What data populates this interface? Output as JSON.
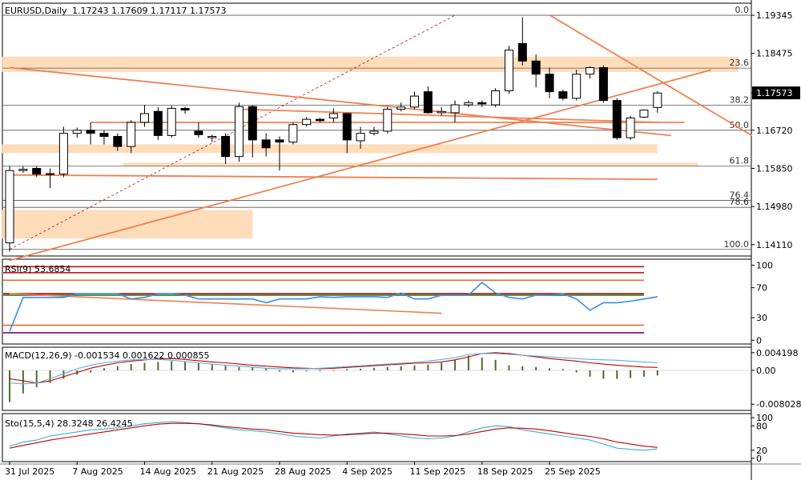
{
  "chart_data": {
    "type": "candlestick",
    "symbol_header": "EURUSD,Daily",
    "ohlc_header": "1.17243 1.17609 1.17117 1.17573",
    "current_price_label": "1.17573",
    "price_axis_labels": [
      "1.19345",
      "1.18475",
      "1.17573",
      "1.16720",
      "1.15850",
      "1.14980",
      "1.14110"
    ],
    "price_axis_values": [
      1.19345,
      1.18475,
      1.17573,
      1.1672,
      1.1585,
      1.1498,
      1.1411
    ],
    "ylim": [
      1.1385,
      1.1962
    ],
    "x_tick_labels": [
      "31 Jul 2025",
      "7 Aug 2025",
      "14 Aug 2025",
      "21 Aug 2025",
      "28 Aug 2025",
      "4 Sep 2025",
      "11 Sep 2025",
      "18 Sep 2025",
      "25 Sep 2025"
    ],
    "x_tick_bar_index": [
      0,
      5,
      10,
      15,
      20,
      25,
      30,
      35,
      40
    ],
    "candles": [
      {
        "o": 1.1415,
        "h": 1.159,
        "l": 1.1395,
        "c": 1.158
      },
      {
        "o": 1.158,
        "h": 1.159,
        "l": 1.1575,
        "c": 1.1583
      },
      {
        "o": 1.1585,
        "h": 1.159,
        "l": 1.1565,
        "c": 1.1572
      },
      {
        "o": 1.1573,
        "h": 1.1585,
        "l": 1.154,
        "c": 1.1572
      },
      {
        "o": 1.1572,
        "h": 1.168,
        "l": 1.1565,
        "c": 1.1665
      },
      {
        "o": 1.1665,
        "h": 1.1678,
        "l": 1.1655,
        "c": 1.1672
      },
      {
        "o": 1.1672,
        "h": 1.169,
        "l": 1.164,
        "c": 1.1665
      },
      {
        "o": 1.1665,
        "h": 1.1672,
        "l": 1.164,
        "c": 1.1658
      },
      {
        "o": 1.1658,
        "h": 1.1665,
        "l": 1.1625,
        "c": 1.1635
      },
      {
        "o": 1.1635,
        "h": 1.1695,
        "l": 1.162,
        "c": 1.169
      },
      {
        "o": 1.169,
        "h": 1.173,
        "l": 1.168,
        "c": 1.171
      },
      {
        "o": 1.1715,
        "h": 1.1725,
        "l": 1.165,
        "c": 1.166
      },
      {
        "o": 1.166,
        "h": 1.1728,
        "l": 1.1655,
        "c": 1.1722
      },
      {
        "o": 1.1722,
        "h": 1.1725,
        "l": 1.171,
        "c": 1.1718
      },
      {
        "o": 1.167,
        "h": 1.169,
        "l": 1.1655,
        "c": 1.1662
      },
      {
        "o": 1.1655,
        "h": 1.1662,
        "l": 1.1645,
        "c": 1.1658
      },
      {
        "o": 1.1658,
        "h": 1.1665,
        "l": 1.1595,
        "c": 1.1612
      },
      {
        "o": 1.1612,
        "h": 1.1735,
        "l": 1.16,
        "c": 1.1726
      },
      {
        "o": 1.1726,
        "h": 1.173,
        "l": 1.161,
        "c": 1.165
      },
      {
        "o": 1.165,
        "h": 1.1665,
        "l": 1.1612,
        "c": 1.1632
      },
      {
        "o": 1.165,
        "h": 1.1658,
        "l": 1.158,
        "c": 1.1645
      },
      {
        "o": 1.1645,
        "h": 1.169,
        "l": 1.164,
        "c": 1.1685
      },
      {
        "o": 1.1685,
        "h": 1.1702,
        "l": 1.168,
        "c": 1.1697
      },
      {
        "o": 1.1697,
        "h": 1.17,
        "l": 1.169,
        "c": 1.1694
      },
      {
        "o": 1.17,
        "h": 1.1722,
        "l": 1.169,
        "c": 1.171
      },
      {
        "o": 1.171,
        "h": 1.1712,
        "l": 1.162,
        "c": 1.165
      },
      {
        "o": 1.1648,
        "h": 1.168,
        "l": 1.163,
        "c": 1.1665
      },
      {
        "o": 1.1665,
        "h": 1.168,
        "l": 1.166,
        "c": 1.167
      },
      {
        "o": 1.167,
        "h": 1.1725,
        "l": 1.1665,
        "c": 1.172
      },
      {
        "o": 1.172,
        "h": 1.1735,
        "l": 1.1715,
        "c": 1.1725
      },
      {
        "o": 1.1725,
        "h": 1.176,
        "l": 1.172,
        "c": 1.175
      },
      {
        "o": 1.176,
        "h": 1.1772,
        "l": 1.171,
        "c": 1.1712
      },
      {
        "o": 1.1712,
        "h": 1.1725,
        "l": 1.1705,
        "c": 1.1715
      },
      {
        "o": 1.1712,
        "h": 1.174,
        "l": 1.169,
        "c": 1.173
      },
      {
        "o": 1.173,
        "h": 1.174,
        "l": 1.1725,
        "c": 1.1735
      },
      {
        "o": 1.1735,
        "h": 1.174,
        "l": 1.1725,
        "c": 1.1732
      },
      {
        "o": 1.173,
        "h": 1.1768,
        "l": 1.1725,
        "c": 1.1762
      },
      {
        "o": 1.1762,
        "h": 1.1865,
        "l": 1.1755,
        "c": 1.1855
      },
      {
        "o": 1.187,
        "h": 1.193,
        "l": 1.182,
        "c": 1.183
      },
      {
        "o": 1.183,
        "h": 1.1845,
        "l": 1.177,
        "c": 1.18
      },
      {
        "o": 1.18,
        "h": 1.1815,
        "l": 1.1745,
        "c": 1.176
      },
      {
        "o": 1.176,
        "h": 1.1765,
        "l": 1.174,
        "c": 1.1745
      },
      {
        "o": 1.1745,
        "h": 1.181,
        "l": 1.174,
        "c": 1.18
      },
      {
        "o": 1.18,
        "h": 1.1818,
        "l": 1.179,
        "c": 1.1815
      },
      {
        "o": 1.1815,
        "h": 1.182,
        "l": 1.1735,
        "c": 1.174
      },
      {
        "o": 1.174,
        "h": 1.1745,
        "l": 1.165,
        "c": 1.1655
      },
      {
        "o": 1.1655,
        "h": 1.1705,
        "l": 1.165,
        "c": 1.17
      },
      {
        "o": 1.1702,
        "h": 1.172,
        "l": 1.17,
        "c": 1.1718
      },
      {
        "o": 1.1724,
        "h": 1.1761,
        "l": 1.1712,
        "c": 1.1757
      }
    ],
    "fibonacci": [
      {
        "label": "0.0",
        "value": 1.19345
      },
      {
        "label": "23.6",
        "value": 1.18139
      },
      {
        "label": "38.2",
        "value": 1.17292
      },
      {
        "label": "50.0",
        "value": 1.1672
      },
      {
        "label": "61.8",
        "value": 1.159
      },
      {
        "label": "76.4",
        "value": 1.1512
      },
      {
        "label": "78.6",
        "value": 1.1496
      },
      {
        "label": "100.0",
        "value": 1.14
      }
    ],
    "zones": [
      {
        "x0": 0,
        "x1": 54,
        "y0": 1.184,
        "y1": 1.1805
      },
      {
        "x0": 0,
        "x1": 48,
        "y0": 1.164,
        "y1": 1.162
      },
      {
        "x0": 9,
        "x1": 51,
        "y0": 1.1598,
        "y1": 1.159
      },
      {
        "x0": 0,
        "x1": 18,
        "y0": 1.149,
        "y1": 1.1425
      }
    ],
    "trendlines": [
      {
        "x0": 0,
        "y0": 1.1815,
        "x1": 49,
        "y1": 1.166
      },
      {
        "x0": 0,
        "y0": 1.1375,
        "x1": 52,
        "y1": 1.181
      },
      {
        "x0": 40,
        "y0": 1.1935,
        "x1": 55,
        "y1": 1.166
      },
      {
        "x0": 17,
        "y0": 1.172,
        "x1": 48,
        "y1": 1.169
      },
      {
        "x0": 0,
        "y0": 1.157,
        "x1": 48,
        "y1": 1.156
      },
      {
        "x0": 6,
        "y0": 1.169,
        "x1": 50,
        "y1": 1.169
      }
    ],
    "rsi": {
      "label": "RSI(9) 53.6854",
      "axis_labels": [
        "100",
        "70",
        "30",
        "0"
      ],
      "axis_values": [
        100,
        70,
        30,
        0
      ],
      "values": [
        12,
        57,
        57,
        57,
        57,
        62,
        62,
        62,
        62,
        55,
        57,
        62,
        62,
        60,
        55,
        55,
        55,
        55,
        55,
        50,
        55,
        55,
        55,
        58,
        57,
        58,
        58,
        58,
        57,
        63,
        55,
        55,
        60,
        60,
        60,
        77,
        63,
        57,
        55,
        60,
        60,
        62,
        55,
        40,
        50,
        50,
        52,
        55,
        58
      ],
      "levels": [
        {
          "v": 98,
          "color": "#c00000"
        },
        {
          "v": 90,
          "color": "#c00000"
        },
        {
          "v": 80,
          "color": "#e07030"
        },
        {
          "v": 62,
          "color": "#c00000"
        },
        {
          "v": 60,
          "color": "#2a8a2a"
        },
        {
          "v": 20,
          "color": "#e07030"
        },
        {
          "v": 10,
          "color": "#800080"
        }
      ],
      "trend": {
        "x0": 0,
        "y0": 62,
        "x1": 32,
        "y1": 36
      }
    },
    "macd": {
      "label": "MACD(12,26,9) -0.001534 0.001622 0.000855",
      "axis_labels": [
        "0.004198",
        "0.00",
        "-0.008028"
      ],
      "axis_values": [
        0.004198,
        0,
        -0.008028
      ],
      "histogram": [
        -0.0075,
        -0.0055,
        -0.004,
        -0.003,
        -0.002,
        -0.001,
        -0.0005,
        0.0005,
        0.001,
        0.0015,
        0.0018,
        0.002,
        0.0022,
        0.002,
        0.0018,
        0.0015,
        0.0012,
        0.0008,
        0.0007,
        0.0005,
        -0.0003,
        -0.0005,
        -0.0002,
        -0.0001,
        0.0001,
        0.0003,
        0.0004,
        0.0006,
        0.0008,
        0.001,
        0.0012,
        0.0014,
        0.0018,
        0.0025,
        0.0035,
        0.003,
        0.0025,
        0.0012,
        0.001,
        0.0008,
        0.0005,
        0.0003,
        -0.0005,
        -0.0015,
        -0.002,
        -0.002,
        -0.0018,
        -0.0015,
        -0.0012
      ],
      "signal": [
        -0.002,
        -0.0025,
        -0.003,
        -0.0025,
        -0.0015,
        -0.0005,
        0.0005,
        0.0012,
        0.0018,
        0.0022,
        0.0025,
        0.0027,
        0.0028,
        0.0026,
        0.0023,
        0.002,
        0.0018,
        0.0015,
        0.0012,
        0.001,
        0.0008,
        0.0006,
        0.0005,
        0.0004,
        0.0005,
        0.0007,
        0.0009,
        0.0011,
        0.0013,
        0.0015,
        0.0017,
        0.0018,
        0.002,
        0.0025,
        0.0032,
        0.004,
        0.0042,
        0.004,
        0.0036,
        0.0032,
        0.0028,
        0.0025,
        0.0022,
        0.0018,
        0.0015,
        0.0012,
        0.001,
        0.0008,
        0.0007
      ],
      "macd_line": [
        -0.003,
        -0.0032,
        -0.003,
        -0.002,
        -0.0008,
        0.0004,
        0.0012,
        0.0018,
        0.0022,
        0.0025,
        0.0026,
        0.0026,
        0.0024,
        0.0021,
        0.0018,
        0.0015,
        0.0012,
        0.001,
        0.0008,
        0.0005,
        0.0004,
        0.0004,
        0.0004,
        0.0005,
        0.0007,
        0.0009,
        0.0011,
        0.0013,
        0.0015,
        0.0017,
        0.0019,
        0.0022,
        0.0026,
        0.003,
        0.0038,
        0.004,
        0.004,
        0.0038,
        0.0036,
        0.0034,
        0.0032,
        0.003,
        0.0028,
        0.0026,
        0.0025,
        0.0024,
        0.0022,
        0.002,
        0.0018
      ]
    },
    "stochastic": {
      "label": "Sto(15,5,4) 28.3248 26.4245",
      "axis_labels": [
        "100",
        "80",
        "20",
        "0"
      ],
      "axis_values": [
        100,
        80,
        20,
        0
      ],
      "k": [
        30,
        40,
        45,
        55,
        60,
        65,
        70,
        72,
        75,
        80,
        85,
        88,
        90,
        88,
        85,
        80,
        75,
        70,
        68,
        65,
        60,
        55,
        52,
        50,
        55,
        60,
        62,
        65,
        60,
        55,
        50,
        48,
        50,
        55,
        65,
        75,
        80,
        78,
        70,
        65,
        60,
        55,
        50,
        45,
        35,
        25,
        22,
        20,
        23
      ],
      "d": [
        25,
        32,
        38,
        45,
        50,
        55,
        60,
        65,
        70,
        75,
        80,
        84,
        86,
        86,
        85,
        82,
        78,
        75,
        72,
        70,
        66,
        62,
        60,
        58,
        57,
        58,
        60,
        62,
        62,
        60,
        58,
        55,
        55,
        56,
        60,
        66,
        72,
        75,
        74,
        72,
        68,
        63,
        58,
        54,
        48,
        40,
        35,
        30,
        27
      ]
    }
  }
}
